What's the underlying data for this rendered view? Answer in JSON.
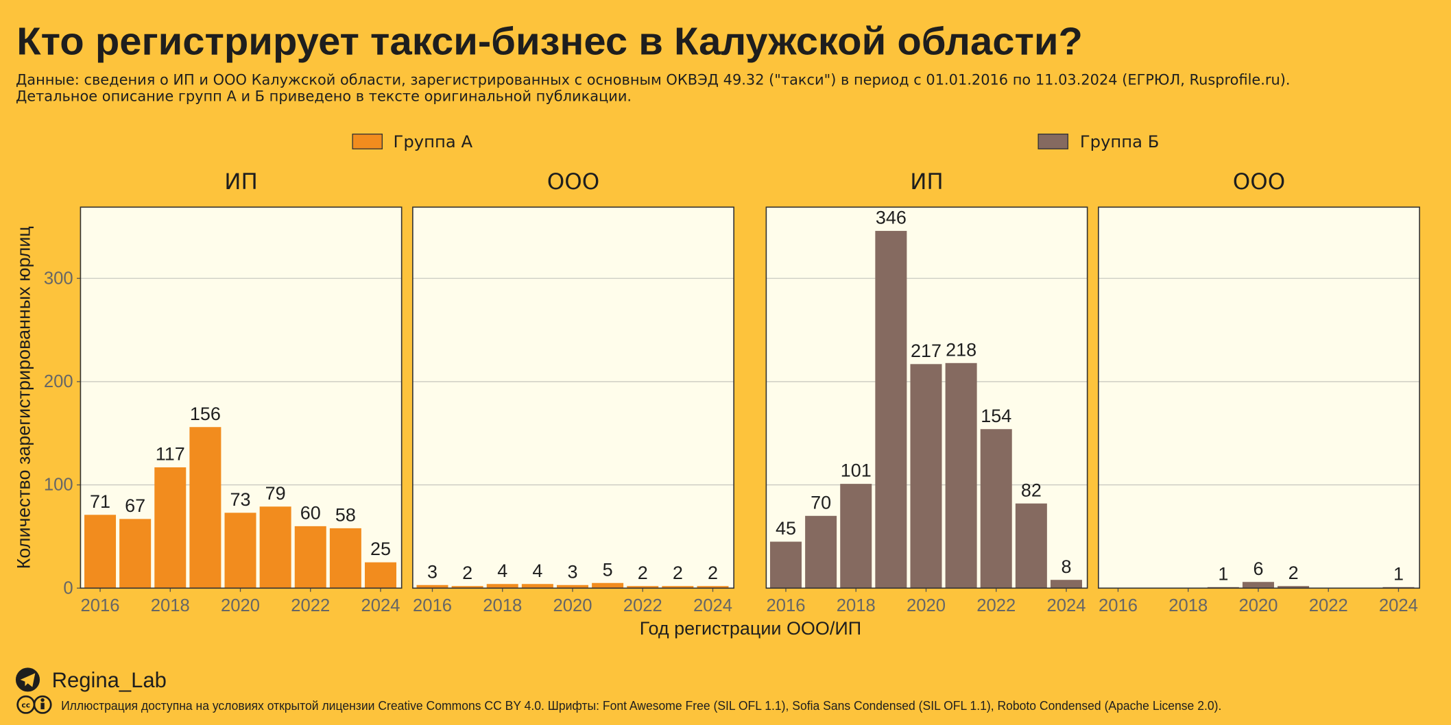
{
  "title": "Кто регистрирует такси-бизнес в Калужской области?",
  "subtitle": [
    "Данные: сведения о ИП и ООО Калужской области, зарегистрированных с основным ОКВЭД 49.32 (\"такси\") в период с 01.01.2016 по 11.03.2024 (ЕГРЮЛ, Rusprofile.ru).",
    "Детальное описание групп А и Б приведено в тексте оригинальной публикации."
  ],
  "x_label": "Год регистрации ООО/ИП",
  "y_label": "Количество зарегистрированных юрлиц",
  "author": "Regina_Lab",
  "license": "Иллюстрация доступна на условиях открытой лицензии Creative Commons CC BY 4.0. Шрифты: Font Awesome Free (SIL OFL 1.1), Sofia Sans Condensed (SIL OFL 1.1), Roboto Condensed (Apache License 2.0).",
  "chart_data": [
    {
      "type": "bar",
      "title": "ИП",
      "x": [
        2016,
        2017,
        2018,
        2019,
        2020,
        2021,
        2022,
        2023,
        2024
      ],
      "series": [
        {
          "name": "Группа А",
          "color": "#f28c1e",
          "values": [
            71,
            67,
            117,
            156,
            73,
            79,
            60,
            58,
            25
          ]
        }
      ],
      "xlim": [
        2015.44,
        2024.6
      ],
      "xticks": [
        2016,
        2018,
        2020,
        2022,
        2024
      ],
      "ylim": [
        0,
        369
      ],
      "yticks": [
        0,
        100,
        200,
        300
      ],
      "grid": true
    },
    {
      "type": "bar",
      "title": "ООО",
      "x": [
        2016,
        2017,
        2018,
        2019,
        2020,
        2021,
        2022,
        2023,
        2024
      ],
      "series": [
        {
          "color": "#f28c1e",
          "values": [
            3,
            2,
            4,
            4,
            3,
            5,
            2,
            2,
            2
          ]
        }
      ],
      "xlim": [
        2015.44,
        2024.6
      ],
      "xticks": [
        2016,
        2018,
        2020,
        2022,
        2024
      ],
      "ylim": [
        0,
        369
      ],
      "yticks": [
        0,
        100,
        200,
        300
      ],
      "grid": true
    },
    {
      "type": "bar",
      "title": "ИП",
      "x": [
        2016,
        2017,
        2018,
        2019,
        2020,
        2021,
        2022,
        2023,
        2024
      ],
      "series": [
        {
          "name": "Группа Б",
          "color": "#856a60",
          "values": [
            45,
            70,
            101,
            346,
            217,
            218,
            154,
            82,
            8
          ]
        }
      ],
      "xlim": [
        2015.44,
        2024.6
      ],
      "xticks": [
        2016,
        2018,
        2020,
        2022,
        2024
      ],
      "ylim": [
        0,
        369
      ],
      "yticks": [
        0,
        100,
        200,
        300
      ],
      "grid": true
    },
    {
      "type": "bar",
      "title": "ООО",
      "x": [
        2019,
        2020,
        2021,
        2024
      ],
      "series": [
        {
          "color": "#856a60",
          "values": [
            1,
            6,
            2,
            1
          ]
        }
      ],
      "xlim": [
        2015.44,
        2024.6
      ],
      "xticks": [
        2016,
        2018,
        2020,
        2022,
        2024
      ],
      "ylim": [
        0,
        369
      ],
      "yticks": [
        0,
        100,
        200,
        300
      ],
      "grid": true
    }
  ]
}
